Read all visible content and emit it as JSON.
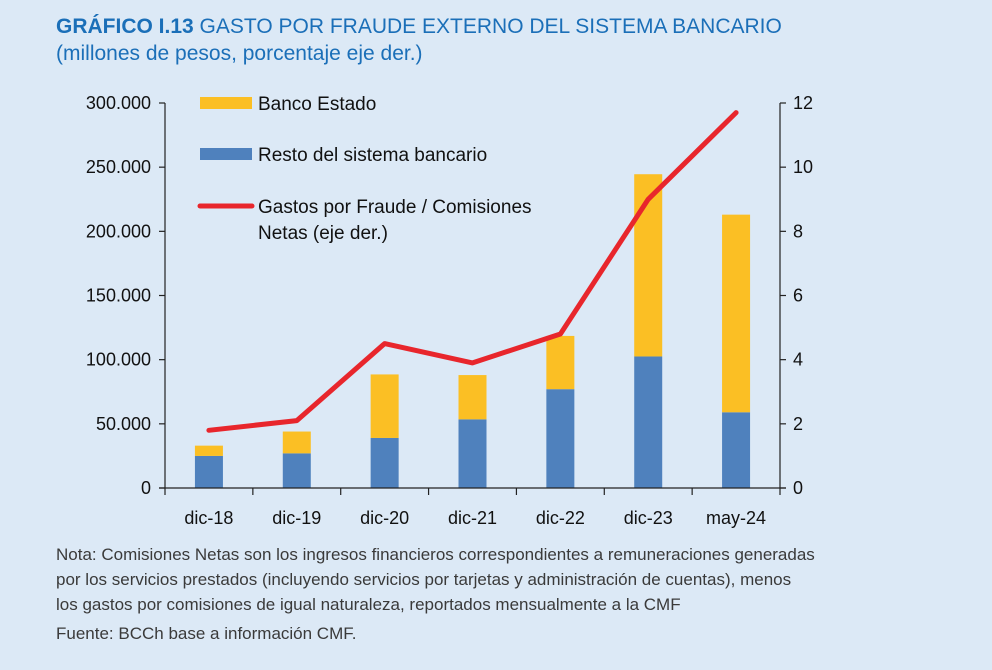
{
  "header": {
    "tag": "GRÁFICO I.13",
    "title": "GASTO POR FRAUDE EXTERNO DEL SISTEMA BANCARIO",
    "subtitle": "(millones de pesos, porcentaje eje der.)"
  },
  "chart_data": {
    "type": "bar",
    "stacked": true,
    "categories": [
      "dic-18",
      "dic-19",
      "dic-20",
      "dic-21",
      "dic-22",
      "dic-23",
      "may-24"
    ],
    "series": [
      {
        "name": "Resto del sistema bancario",
        "type": "bar",
        "axis": "left",
        "color": "#4f81bd",
        "values": [
          25000,
          27000,
          39000,
          53500,
          77000,
          102500,
          59000
        ]
      },
      {
        "name": "Banco Estado",
        "type": "bar",
        "axis": "left",
        "color": "#fbbf24",
        "values": [
          8000,
          17000,
          49500,
          34500,
          41500,
          142000,
          154000
        ]
      },
      {
        "name": "Gastos por Fraude / Comisiones Netas (eje der.)",
        "type": "line",
        "axis": "right",
        "color": "#e8262c",
        "values": [
          1.8,
          2.1,
          4.5,
          3.9,
          4.8,
          9.0,
          11.7
        ]
      }
    ],
    "left_axis": {
      "min": 0,
      "max": 300000,
      "ticks": [
        0,
        50000,
        100000,
        150000,
        200000,
        250000,
        300000
      ],
      "tick_labels": [
        "0",
        "50.000",
        "100.000",
        "150.000",
        "200.000",
        "250.000",
        "300.000"
      ]
    },
    "right_axis": {
      "min": 0,
      "max": 12,
      "ticks": [
        0,
        2,
        4,
        6,
        8,
        10,
        12
      ],
      "tick_labels": [
        "0",
        "2",
        "4",
        "6",
        "8",
        "10",
        "12"
      ]
    },
    "legend": [
      {
        "label": "Banco Estado",
        "kind": "bar",
        "color": "#fbbf24"
      },
      {
        "label": "Resto del sistema bancario",
        "kind": "bar",
        "color": "#4f81bd"
      },
      {
        "label": "Gastos por Fraude / Comisiones",
        "label2": "Netas (eje der.)",
        "kind": "line",
        "color": "#e8262c"
      }
    ],
    "legend_position": "top-left"
  },
  "notes": {
    "lines": [
      "Nota: Comisiones Netas son los ingresos financieros correspondientes a remuneraciones generadas",
      "por los servicios prestados (incluyendo servicios por tarjetas y administración de cuentas), menos",
      "los gastos por comisiones de igual naturaleza, reportados mensualmente a la CMF"
    ],
    "source": "Fuente: BCCh base a información CMF."
  }
}
